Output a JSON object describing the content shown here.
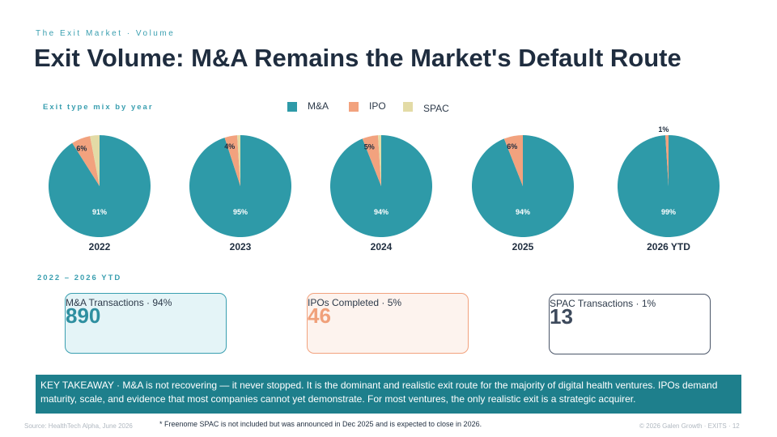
{
  "header": {
    "kicker": "The Exit Market  ·  Volume",
    "title": "Exit Volume: M&A Remains the Market's Default Route"
  },
  "mix_label": "Exit type mix by year",
  "chart_data": [
    {
      "type": "pie",
      "title": "2022",
      "categories": [
        "M&A",
        "IPO",
        "SPAC"
      ],
      "colors": [
        "#2e9aa8",
        "#f2a27e",
        "#e3dba6"
      ],
      "values": [
        91,
        6,
        3
      ],
      "value_labels": [
        "91%",
        "6%",
        null
      ]
    },
    {
      "type": "pie",
      "title": "2023",
      "categories": [
        "M&A",
        "IPO",
        "SPAC"
      ],
      "colors": [
        "#2e9aa8",
        "#f2a27e",
        "#e3dba6"
      ],
      "values": [
        95,
        4,
        1
      ],
      "value_labels": [
        "95%",
        "4%",
        null
      ]
    },
    {
      "type": "pie",
      "title": "2024",
      "categories": [
        "M&A",
        "IPO",
        "SPAC"
      ],
      "colors": [
        "#2e9aa8",
        "#f2a27e",
        "#e3dba6"
      ],
      "values": [
        94,
        5,
        1
      ],
      "value_labels": [
        "94%",
        "5%",
        null
      ]
    },
    {
      "type": "pie",
      "title": "2025",
      "categories": [
        "M&A",
        "IPO",
        "SPAC"
      ],
      "colors": [
        "#2e9aa8",
        "#f2a27e",
        "#e3dba6"
      ],
      "values": [
        94,
        6,
        0
      ],
      "value_labels": [
        "94%",
        "6%",
        null
      ]
    },
    {
      "type": "pie",
      "title": "2026 YTD",
      "categories": [
        "M&A",
        "IPO",
        "SPAC"
      ],
      "colors": [
        "#2e9aa8",
        "#f2a27e",
        "#e3dba6"
      ],
      "values": [
        99,
        1,
        0
      ],
      "value_labels": [
        "99%",
        "1%",
        null
      ]
    }
  ],
  "period_label": "2022 – 2026 YTD",
  "cards": [
    {
      "value": 890,
      "label": "M&A Transactions  ·  94%"
    },
    {
      "value": 46,
      "label": "IPOs Completed  ·  5%"
    },
    {
      "value": 13,
      "label": "SPAC Transactions  ·  1%"
    }
  ],
  "takeaway": "KEY TAKEAWAY  ·  M&A is not recovering — it never stopped. It is the dominant and realistic exit route for the majority of digital health ventures. IPOs demand maturity, scale, and evidence that most companies cannot yet demonstrate. For most ventures, the only realistic exit is a strategic acquirer.",
  "footnote": "* Freenome SPAC is not included but was announced in Dec 2025 and is expected to close in 2026.",
  "source": "Source: HealthTech Alpha, June 2026",
  "footer": "© 2026 Galen Growth · EXITS · 12"
}
